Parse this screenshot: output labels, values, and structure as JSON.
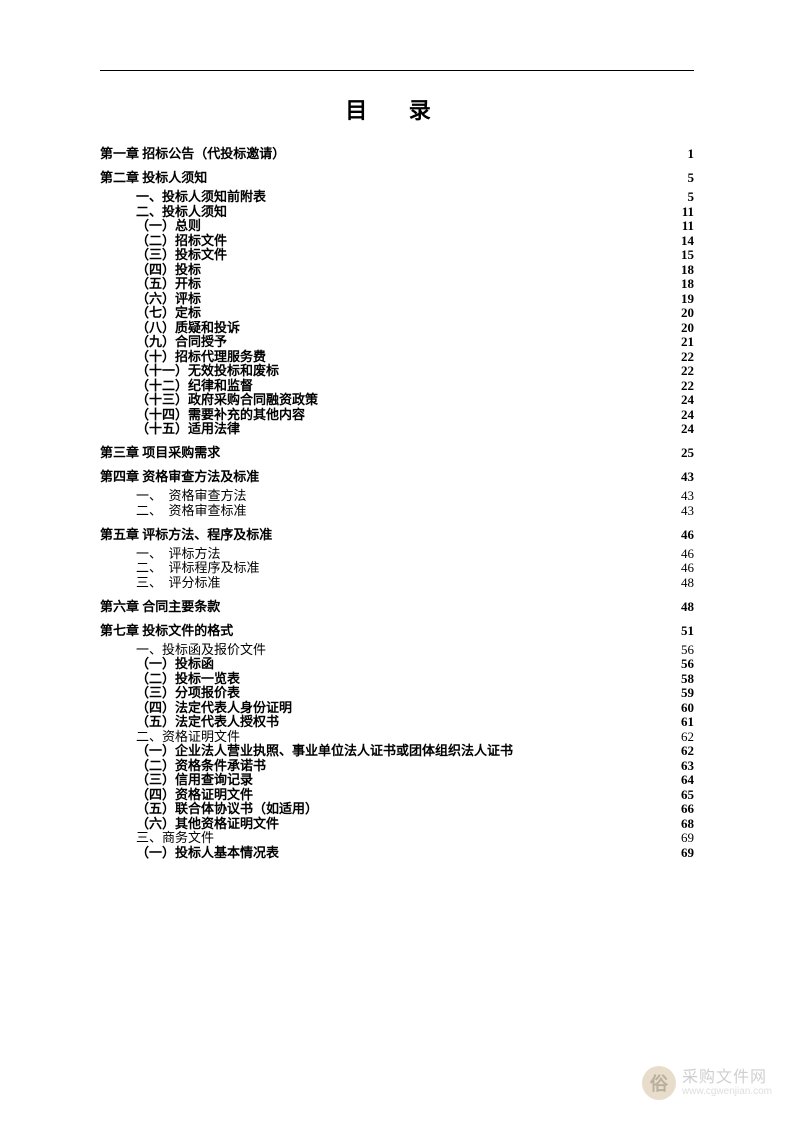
{
  "title": "目 录",
  "entries": [
    {
      "level": "chapter",
      "indent": 0,
      "label": "第一章 招标公告（代投标邀请）",
      "page": "1"
    },
    {
      "level": "chapter",
      "indent": 0,
      "label": "第二章 投标人须知",
      "page": "5"
    },
    {
      "level": "section",
      "indent": 1,
      "label": "一、投标人须知前附表",
      "page": "5"
    },
    {
      "level": "section",
      "indent": 1,
      "label": "二、投标人须知",
      "page": "11"
    },
    {
      "level": "section",
      "indent": 1,
      "label": "（一）总则",
      "page": "11"
    },
    {
      "level": "section",
      "indent": 1,
      "label": "（二）招标文件",
      "page": "14"
    },
    {
      "level": "section",
      "indent": 1,
      "label": "（三）投标文件",
      "page": "15"
    },
    {
      "level": "section",
      "indent": 1,
      "label": "（四）投标",
      "page": "18"
    },
    {
      "level": "section",
      "indent": 1,
      "label": "（五）开标",
      "page": "18"
    },
    {
      "level": "section",
      "indent": 1,
      "label": "（六）评标",
      "page": "19"
    },
    {
      "level": "section",
      "indent": 1,
      "label": "（七）定标",
      "page": "20"
    },
    {
      "level": "section",
      "indent": 1,
      "label": "（八）质疑和投诉",
      "page": "20"
    },
    {
      "level": "section",
      "indent": 1,
      "label": "（九）合同授予",
      "page": "21"
    },
    {
      "level": "section",
      "indent": 1,
      "label": "（十）招标代理服务费",
      "page": "22"
    },
    {
      "level": "section",
      "indent": 1,
      "label": "（十一）无效投标和废标",
      "page": "22"
    },
    {
      "level": "section",
      "indent": 1,
      "label": "（十二）纪律和监督",
      "page": "22"
    },
    {
      "level": "section",
      "indent": 1,
      "label": "（十三）政府采购合同融资政策",
      "page": "24"
    },
    {
      "level": "section",
      "indent": 1,
      "label": "（十四）需要补充的其他内容",
      "page": "24"
    },
    {
      "level": "section",
      "indent": 1,
      "label": "（十五）适用法律",
      "page": "24"
    },
    {
      "level": "chapter",
      "indent": 0,
      "label": "第三章 项目采购需求",
      "page": "25"
    },
    {
      "level": "chapter",
      "indent": 0,
      "label": "第四章 资格审查方法及标准",
      "page": "43"
    },
    {
      "level": "sub",
      "indent": 1,
      "label": "一、　资格审查方法",
      "page": "43"
    },
    {
      "level": "sub",
      "indent": 1,
      "label": "二、　资格审查标准",
      "page": "43"
    },
    {
      "level": "chapter",
      "indent": 0,
      "label": "第五章 评标方法、程序及标准",
      "page": "46"
    },
    {
      "level": "sub",
      "indent": 1,
      "label": "一、　评标方法",
      "page": "46"
    },
    {
      "level": "sub",
      "indent": 1,
      "label": "二、　评标程序及标准",
      "page": "46"
    },
    {
      "level": "sub",
      "indent": 1,
      "label": "三、　评分标准",
      "page": "48"
    },
    {
      "level": "chapter",
      "indent": 0,
      "label": "第六章 合同主要条款",
      "page": "48"
    },
    {
      "level": "chapter",
      "indent": 0,
      "label": "第七章 投标文件的格式",
      "page": "51"
    },
    {
      "level": "sub",
      "indent": 1,
      "label": "一、投标函及报价文件",
      "page": "56"
    },
    {
      "level": "section",
      "indent": 1,
      "label": "（一）投标函",
      "page": "56"
    },
    {
      "level": "section",
      "indent": 1,
      "label": "（二）投标一览表",
      "page": "58"
    },
    {
      "level": "section",
      "indent": 1,
      "label": "（三）分项报价表",
      "page": "59"
    },
    {
      "level": "section",
      "indent": 1,
      "label": "（四）法定代表人身份证明",
      "page": "60"
    },
    {
      "level": "section",
      "indent": 1,
      "label": "（五）法定代表人授权书",
      "page": "61"
    },
    {
      "level": "sub",
      "indent": 1,
      "label": "二、资格证明文件",
      "page": "62"
    },
    {
      "level": "section",
      "indent": 1,
      "label": "（一）企业法人营业执照、事业单位法人证书或团体组织法人证书",
      "page": "62"
    },
    {
      "level": "section",
      "indent": 1,
      "label": "（二）资格条件承诺书",
      "page": "63"
    },
    {
      "level": "section",
      "indent": 1,
      "label": "（三）信用查询记录",
      "page": "64"
    },
    {
      "level": "section",
      "indent": 1,
      "label": "（四）资格证明文件",
      "page": "65"
    },
    {
      "level": "section",
      "indent": 1,
      "label": "（五）联合体协议书（如适用）",
      "page": "66"
    },
    {
      "level": "section",
      "indent": 1,
      "label": "（六）其他资格证明文件",
      "page": "68"
    },
    {
      "level": "sub",
      "indent": 1,
      "label": "三、商务文件",
      "page": "69"
    },
    {
      "level": "section",
      "indent": 1,
      "label": "（一）投标人基本情况表",
      "page": "69"
    }
  ],
  "watermark": {
    "icon": "俗",
    "main": "采购文件网",
    "sub": "www.cgwenjian.com"
  },
  "colors": {
    "text": "#000000",
    "bg": "#ffffff",
    "wm_text": "#b0b0b0",
    "wm_sub": "#c8c8c8",
    "wm_icon_bg": "#d9c7a8",
    "wm_icon_fg": "#8c7b5d"
  },
  "fonts": {
    "body": "SimSun",
    "title_size": 22,
    "line_size": 13
  }
}
